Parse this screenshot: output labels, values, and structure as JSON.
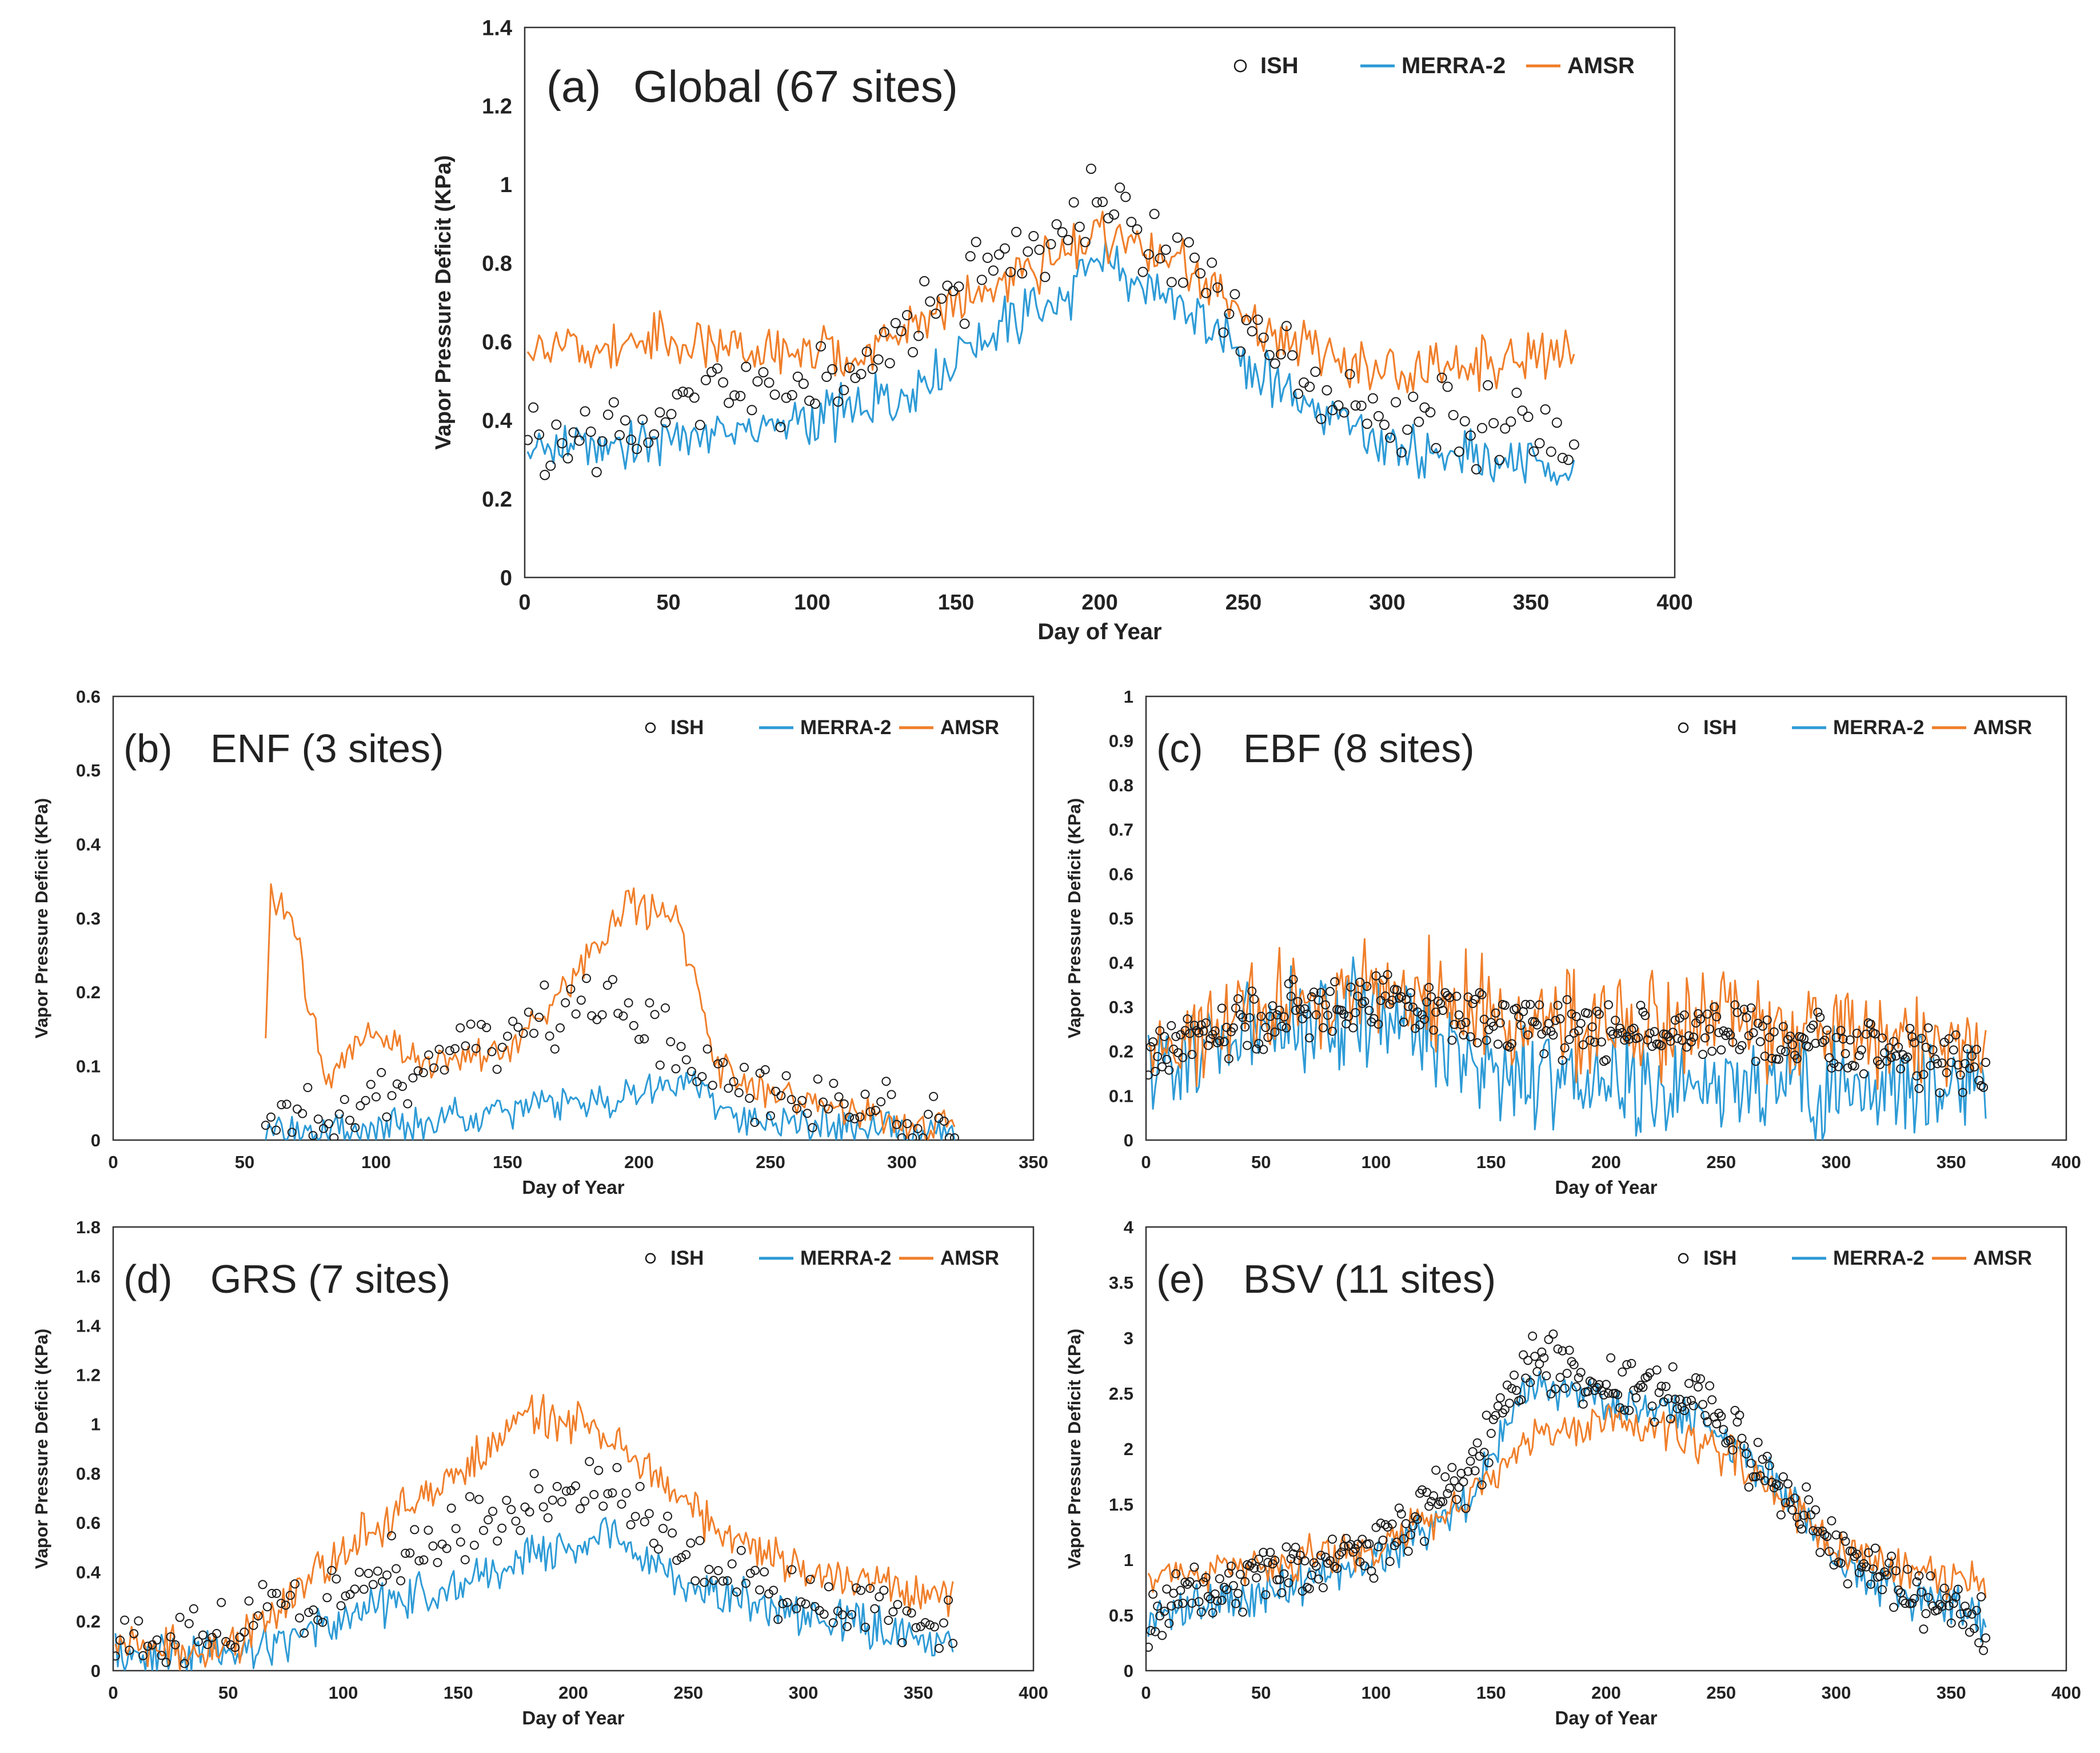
{
  "figure": {
    "series_names": {
      "ish": "ISH",
      "merra": "MERRA-2",
      "amsr": "AMSR"
    },
    "colors": {
      "ish": "#1a1a1a",
      "merra": "#2e9bd6",
      "amsr": "#f07f2b",
      "frame": "#333333",
      "text": "#222222"
    }
  },
  "chart_data": [
    {
      "id": "a",
      "type": "line",
      "panel_label": "(a)",
      "title": "Global (67 sites)",
      "xlabel": "Day of Year",
      "ylabel": "Vapor Pressure Deficit (KPa)",
      "xlim": [
        0,
        400
      ],
      "ylim": [
        0,
        1.4
      ],
      "xticks": [
        0,
        50,
        100,
        150,
        200,
        250,
        300,
        350,
        400
      ],
      "yticks": [
        0,
        0.2,
        0.4,
        0.6,
        0.8,
        1,
        1.2,
        1.4
      ],
      "legend_position": "top-right",
      "day_range": [
        1,
        365
      ],
      "series": [
        {
          "key": "merra",
          "name": "MERRA-2",
          "style": "line",
          "profile_days": [
            1,
            40,
            100,
            130,
            160,
            190,
            200,
            215,
            235,
            260,
            280,
            300,
            330,
            365
          ],
          "profile_values": [
            0.33,
            0.35,
            0.4,
            0.45,
            0.62,
            0.72,
            0.8,
            0.75,
            0.66,
            0.5,
            0.42,
            0.33,
            0.31,
            0.28
          ]
        },
        {
          "key": "amsr",
          "name": "AMSR",
          "style": "line",
          "profile_days": [
            1,
            40,
            100,
            120,
            130,
            160,
            190,
            205,
            230,
            260,
            280,
            300,
            330,
            365
          ],
          "profile_values": [
            0.57,
            0.6,
            0.57,
            0.55,
            0.64,
            0.72,
            0.83,
            0.88,
            0.78,
            0.62,
            0.56,
            0.5,
            0.55,
            0.56
          ]
        },
        {
          "key": "ish",
          "name": "ISH",
          "style": "markers",
          "profile_days": [
            1,
            40,
            100,
            130,
            160,
            190,
            200,
            215,
            235,
            260,
            280,
            300,
            330,
            365
          ],
          "profile_values": [
            0.36,
            0.38,
            0.5,
            0.58,
            0.8,
            0.9,
            0.95,
            0.88,
            0.75,
            0.58,
            0.48,
            0.42,
            0.38,
            0.36
          ]
        }
      ]
    },
    {
      "id": "b",
      "type": "line",
      "panel_label": "(b)",
      "title": "ENF (3 sites)",
      "xlabel": "Day of Year",
      "ylabel": "Vapor Pressure Deficit (KPa)",
      "xlim": [
        0,
        350
      ],
      "ylim": [
        0,
        0.6
      ],
      "xticks": [
        0,
        50,
        100,
        150,
        200,
        250,
        300,
        350
      ],
      "yticks": [
        0,
        0.1,
        0.2,
        0.3,
        0.4,
        0.5,
        0.6
      ],
      "legend_position": "top-right",
      "day_range": [
        58,
        320
      ],
      "series": [
        {
          "key": "merra",
          "name": "MERRA-2",
          "style": "line",
          "profile_days": [
            58,
            100,
            130,
            170,
            200,
            215,
            240,
            270,
            300,
            320
          ],
          "profile_values": [
            0.005,
            0.01,
            0.03,
            0.05,
            0.06,
            0.08,
            0.03,
            0.02,
            0.01,
            0.005
          ]
        },
        {
          "key": "amsr",
          "name": "AMSR",
          "style": "line",
          "profile_days": [
            58,
            60,
            70,
            80,
            100,
            120,
            150,
            170,
            195,
            215,
            230,
            250,
            270,
            300,
            320
          ],
          "profile_values": [
            0.12,
            0.34,
            0.28,
            0.08,
            0.15,
            0.1,
            0.12,
            0.2,
            0.32,
            0.3,
            0.1,
            0.06,
            0.05,
            0.02,
            0.02
          ]
        },
        {
          "key": "ish",
          "name": "ISH",
          "style": "markers",
          "profile_days": [
            58,
            100,
            130,
            160,
            190,
            215,
            240,
            270,
            300,
            320
          ],
          "profile_values": [
            0.01,
            0.05,
            0.12,
            0.16,
            0.18,
            0.12,
            0.06,
            0.05,
            0.03,
            0.01
          ]
        }
      ]
    },
    {
      "id": "c",
      "type": "line",
      "panel_label": "(c)",
      "title": "EBF (8 sites)",
      "xlabel": "Day of Year",
      "ylabel": "Vapor Pressure Deficit (KPa)",
      "xlim": [
        0,
        400
      ],
      "ylim": [
        0,
        1
      ],
      "xticks": [
        0,
        50,
        100,
        150,
        200,
        250,
        300,
        350,
        400
      ],
      "yticks": [
        0,
        0.1,
        0.2,
        0.3,
        0.4,
        0.5,
        0.6,
        0.7,
        0.8,
        0.9,
        1
      ],
      "legend_position": "top-right",
      "day_range": [
        1,
        365
      ],
      "series": [
        {
          "key": "merra",
          "name": "MERRA-2",
          "style": "line",
          "profile_days": [
            1,
            50,
            90,
            110,
            150,
            200,
            250,
            300,
            365
          ],
          "profile_values": [
            0.18,
            0.25,
            0.3,
            0.28,
            0.15,
            0.12,
            0.14,
            0.12,
            0.15
          ]
        },
        {
          "key": "amsr",
          "name": "AMSR",
          "style": "line",
          "profile_days": [
            1,
            50,
            100,
            120,
            150,
            200,
            250,
            300,
            365
          ],
          "profile_values": [
            0.22,
            0.3,
            0.35,
            0.33,
            0.28,
            0.25,
            0.28,
            0.24,
            0.2
          ]
        },
        {
          "key": "ish",
          "name": "ISH",
          "style": "markers",
          "profile_days": [
            1,
            50,
            100,
            150,
            200,
            250,
            300,
            365
          ],
          "profile_values": [
            0.2,
            0.28,
            0.32,
            0.27,
            0.24,
            0.25,
            0.22,
            0.17
          ]
        }
      ]
    },
    {
      "id": "d",
      "type": "line",
      "panel_label": "(d)",
      "title": "GRS (7 sites)",
      "xlabel": "Day of Year",
      "ylabel": "Vapor Pressure Deficit (KPa)",
      "xlim": [
        0,
        400
      ],
      "ylim": [
        0,
        1.8
      ],
      "xticks": [
        0,
        50,
        100,
        150,
        200,
        250,
        300,
        350,
        400
      ],
      "yticks": [
        0,
        0.2,
        0.4,
        0.6,
        0.8,
        1,
        1.2,
        1.4,
        1.6,
        1.8
      ],
      "legend_position": "top-right",
      "day_range": [
        1,
        365
      ],
      "series": [
        {
          "key": "merra",
          "name": "MERRA-2",
          "style": "line",
          "profile_days": [
            1,
            60,
            100,
            150,
            190,
            215,
            250,
            300,
            365
          ],
          "profile_values": [
            0.05,
            0.08,
            0.22,
            0.35,
            0.5,
            0.55,
            0.35,
            0.22,
            0.12
          ]
        },
        {
          "key": "amsr",
          "name": "AMSR",
          "style": "line",
          "profile_days": [
            1,
            40,
            60,
            100,
            150,
            180,
            205,
            230,
            260,
            300,
            365
          ],
          "profile_values": [
            0.12,
            0.06,
            0.15,
            0.5,
            0.8,
            1.05,
            1.0,
            0.85,
            0.6,
            0.4,
            0.3
          ]
        },
        {
          "key": "ish",
          "name": "ISH",
          "style": "markers",
          "profile_days": [
            1,
            50,
            100,
            150,
            190,
            215,
            250,
            300,
            365
          ],
          "profile_values": [
            0.1,
            0.15,
            0.35,
            0.55,
            0.7,
            0.75,
            0.45,
            0.3,
            0.2
          ]
        }
      ]
    },
    {
      "id": "e",
      "type": "line",
      "panel_label": "(e)",
      "title": "BSV (11 sites)",
      "xlabel": "Day of Year",
      "ylabel": "Vapor Pressure Deficit (KPa)",
      "xlim": [
        0,
        400
      ],
      "ylim": [
        0,
        4
      ],
      "xticks": [
        0,
        50,
        100,
        150,
        200,
        250,
        300,
        350,
        400
      ],
      "yticks": [
        0,
        0.5,
        1,
        1.5,
        2,
        2.5,
        3,
        3.5,
        4
      ],
      "legend_position": "top-right",
      "day_range": [
        1,
        365
      ],
      "series": [
        {
          "key": "merra",
          "name": "MERRA-2",
          "style": "line",
          "profile_days": [
            1,
            50,
            100,
            140,
            165,
            200,
            240,
            270,
            300,
            330,
            365
          ],
          "profile_values": [
            0.5,
            0.7,
            1.0,
            1.5,
            2.6,
            2.4,
            2.3,
            1.8,
            1.0,
            0.7,
            0.45
          ]
        },
        {
          "key": "amsr",
          "name": "AMSR",
          "style": "line",
          "profile_days": [
            1,
            50,
            100,
            140,
            165,
            200,
            240,
            270,
            300,
            330,
            365
          ],
          "profile_values": [
            0.85,
            0.95,
            1.1,
            1.5,
            2.1,
            2.3,
            2.1,
            1.7,
            1.1,
            0.9,
            0.82
          ]
        },
        {
          "key": "ish",
          "name": "ISH",
          "style": "markers",
          "profile_days": [
            1,
            50,
            100,
            140,
            165,
            200,
            240,
            270,
            300,
            330,
            365
          ],
          "profile_values": [
            0.5,
            0.85,
            1.1,
            1.7,
            2.8,
            2.6,
            2.4,
            1.8,
            1.1,
            0.75,
            0.45
          ]
        }
      ]
    }
  ]
}
